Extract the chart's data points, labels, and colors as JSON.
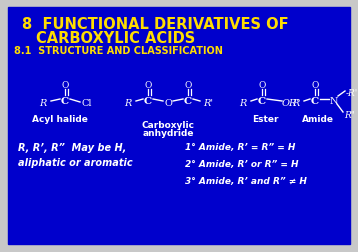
{
  "outer_bg": "#c8c8c8",
  "inner_bg": "#0000cc",
  "title_line1": "8  FUNCTIONAL DERIVATIVES OF",
  "title_line2": "CARBOXYLIC ACIDS",
  "subtitle": "8.1  STRUCTURE AND CLASSIFICATION",
  "title_color": "#ffdd00",
  "white": "#ffffff",
  "note_left_line1": "R, R’, R”  May be H,",
  "note_left_line2": "aliphatic or aromatic",
  "amide_note1": "1° Amide, R’ = R” = H",
  "amide_note2": "2° Amide, R’ or R” = H",
  "amide_note3": "3° Amide, R’ and R” ≠ H",
  "label1": "Acyl halide",
  "label2a": "Carboxylic",
  "label2b": "anhydride",
  "label3": "Ester",
  "label4": "Amide"
}
